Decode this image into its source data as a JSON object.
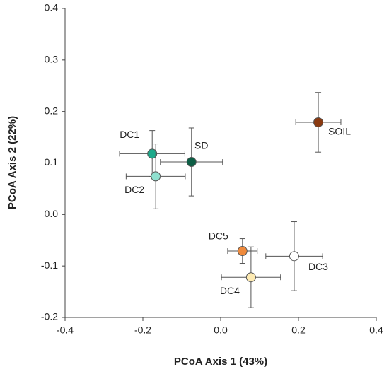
{
  "chart_data": {
    "type": "scatter",
    "xlabel": "PCoA Axis 1 (43%)",
    "ylabel": "PCoA Axis 2 (22%)",
    "xlim": [
      -0.4,
      0.4
    ],
    "ylim": [
      -0.2,
      0.4
    ],
    "xticks": [
      -0.4,
      -0.2,
      {
        "value": 0,
        "label": "0.0"
      },
      0.2,
      0.4
    ],
    "yticks": [
      -0.2,
      -0.1,
      {
        "value": 0,
        "label": "0.0"
      },
      0.1,
      0.2,
      0.3,
      0.4
    ],
    "points": [
      {
        "name": "DC1",
        "x": -0.176,
        "y": 0.118,
        "xerr": 0.084,
        "yerr": 0.045,
        "color": "#1daa8b"
      },
      {
        "name": "DC2",
        "x": -0.167,
        "y": 0.074,
        "xerr": 0.076,
        "yerr": 0.063,
        "color": "#8fe0cf"
      },
      {
        "name": "SD",
        "x": -0.075,
        "y": 0.102,
        "xerr": 0.08,
        "yerr": 0.066,
        "color": "#0d5e45"
      },
      {
        "name": "SOIL",
        "x": 0.251,
        "y": 0.179,
        "xerr": 0.058,
        "yerr": 0.058,
        "color": "#8b3a10"
      },
      {
        "name": "DC5",
        "x": 0.056,
        "y": -0.071,
        "xerr": 0.038,
        "yerr": 0.024,
        "color": "#ef8a3c"
      },
      {
        "name": "DC3",
        "x": 0.189,
        "y": -0.081,
        "xerr": 0.073,
        "yerr": 0.067,
        "color": "#ffffff"
      },
      {
        "name": "DC4",
        "x": 0.078,
        "y": -0.122,
        "xerr": 0.076,
        "yerr": 0.059,
        "color": "#fdeab2"
      }
    ]
  }
}
